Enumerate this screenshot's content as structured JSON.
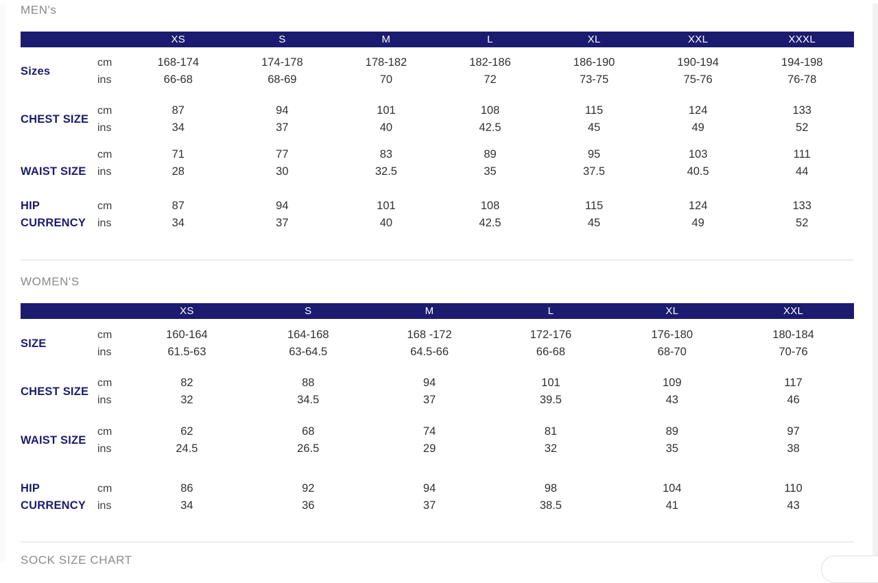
{
  "theme": {
    "navy": "#1b1b6f",
    "heading_gray": "#8a8a8a",
    "text_dark": "#303030",
    "header_text": "#ffffff",
    "divider": "#ececec",
    "scrollbar_track": "#f2f2f2"
  },
  "units": {
    "cm": "cm",
    "ins": "ins"
  },
  "mens": {
    "heading": "MEN's",
    "columns": [
      "XS",
      "S",
      "M",
      "L",
      "XL",
      "XXL",
      "XXXL"
    ],
    "rows": [
      {
        "label": "Sizes",
        "cm": [
          "168-174",
          "174-178",
          "178-182",
          "182-186",
          "186-190",
          "190-194",
          "194-198"
        ],
        "ins": [
          "66-68",
          "68-69",
          "70",
          "72",
          "73-75",
          "75-76",
          "76-78"
        ]
      },
      {
        "label": "CHEST SIZE",
        "cm": [
          "87",
          "94",
          "101",
          "108",
          "115",
          "124",
          "133"
        ],
        "ins": [
          "34",
          "37",
          "40",
          "42.5",
          "45",
          "49",
          "52"
        ]
      },
      {
        "label": "WAIST SIZE",
        "cm": [
          "71",
          "77",
          "83",
          "89",
          "95",
          "103",
          "111"
        ],
        "ins": [
          "28",
          "30",
          "32.5",
          "35",
          "37.5",
          "40.5",
          "44"
        ]
      },
      {
        "label": "HIP\nCURRENCY",
        "cm": [
          "87",
          "94",
          "101",
          "108",
          "115",
          "124",
          "133"
        ],
        "ins": [
          "34",
          "37",
          "40",
          "42.5",
          "45",
          "49",
          "52"
        ]
      }
    ]
  },
  "womens": {
    "heading": "WOMEN'S",
    "columns": [
      "XS",
      "S",
      "M",
      "L",
      "XL",
      "XXL"
    ],
    "rows": [
      {
        "label": "SIZE",
        "cm": [
          "160-164",
          "164-168",
          "168 -172",
          "172-176",
          "176-180",
          "180-184"
        ],
        "ins": [
          "61.5-63",
          "63-64.5",
          "64.5-66",
          "66-68",
          "68-70",
          "70-76"
        ]
      },
      {
        "label": "CHEST SIZE",
        "cm": [
          "82",
          "88",
          "94",
          "101",
          "109",
          "117"
        ],
        "ins": [
          "32",
          "34.5",
          "37",
          "39.5",
          "43",
          "46"
        ]
      },
      {
        "label": "WAIST SIZE",
        "cm": [
          "62",
          "68",
          "74",
          "81",
          "89",
          "97"
        ],
        "ins": [
          "24.5",
          "26.5",
          "29",
          "32",
          "35",
          "38"
        ]
      },
      {
        "label": "HIP\nCURRENCY",
        "cm": [
          "86",
          "92",
          "94",
          "98",
          "104",
          "110"
        ],
        "ins": [
          "34",
          "36",
          "37",
          "38.5",
          "41",
          "43"
        ]
      }
    ]
  },
  "footer": {
    "partial_heading": "SOCK SIZE CHART"
  }
}
